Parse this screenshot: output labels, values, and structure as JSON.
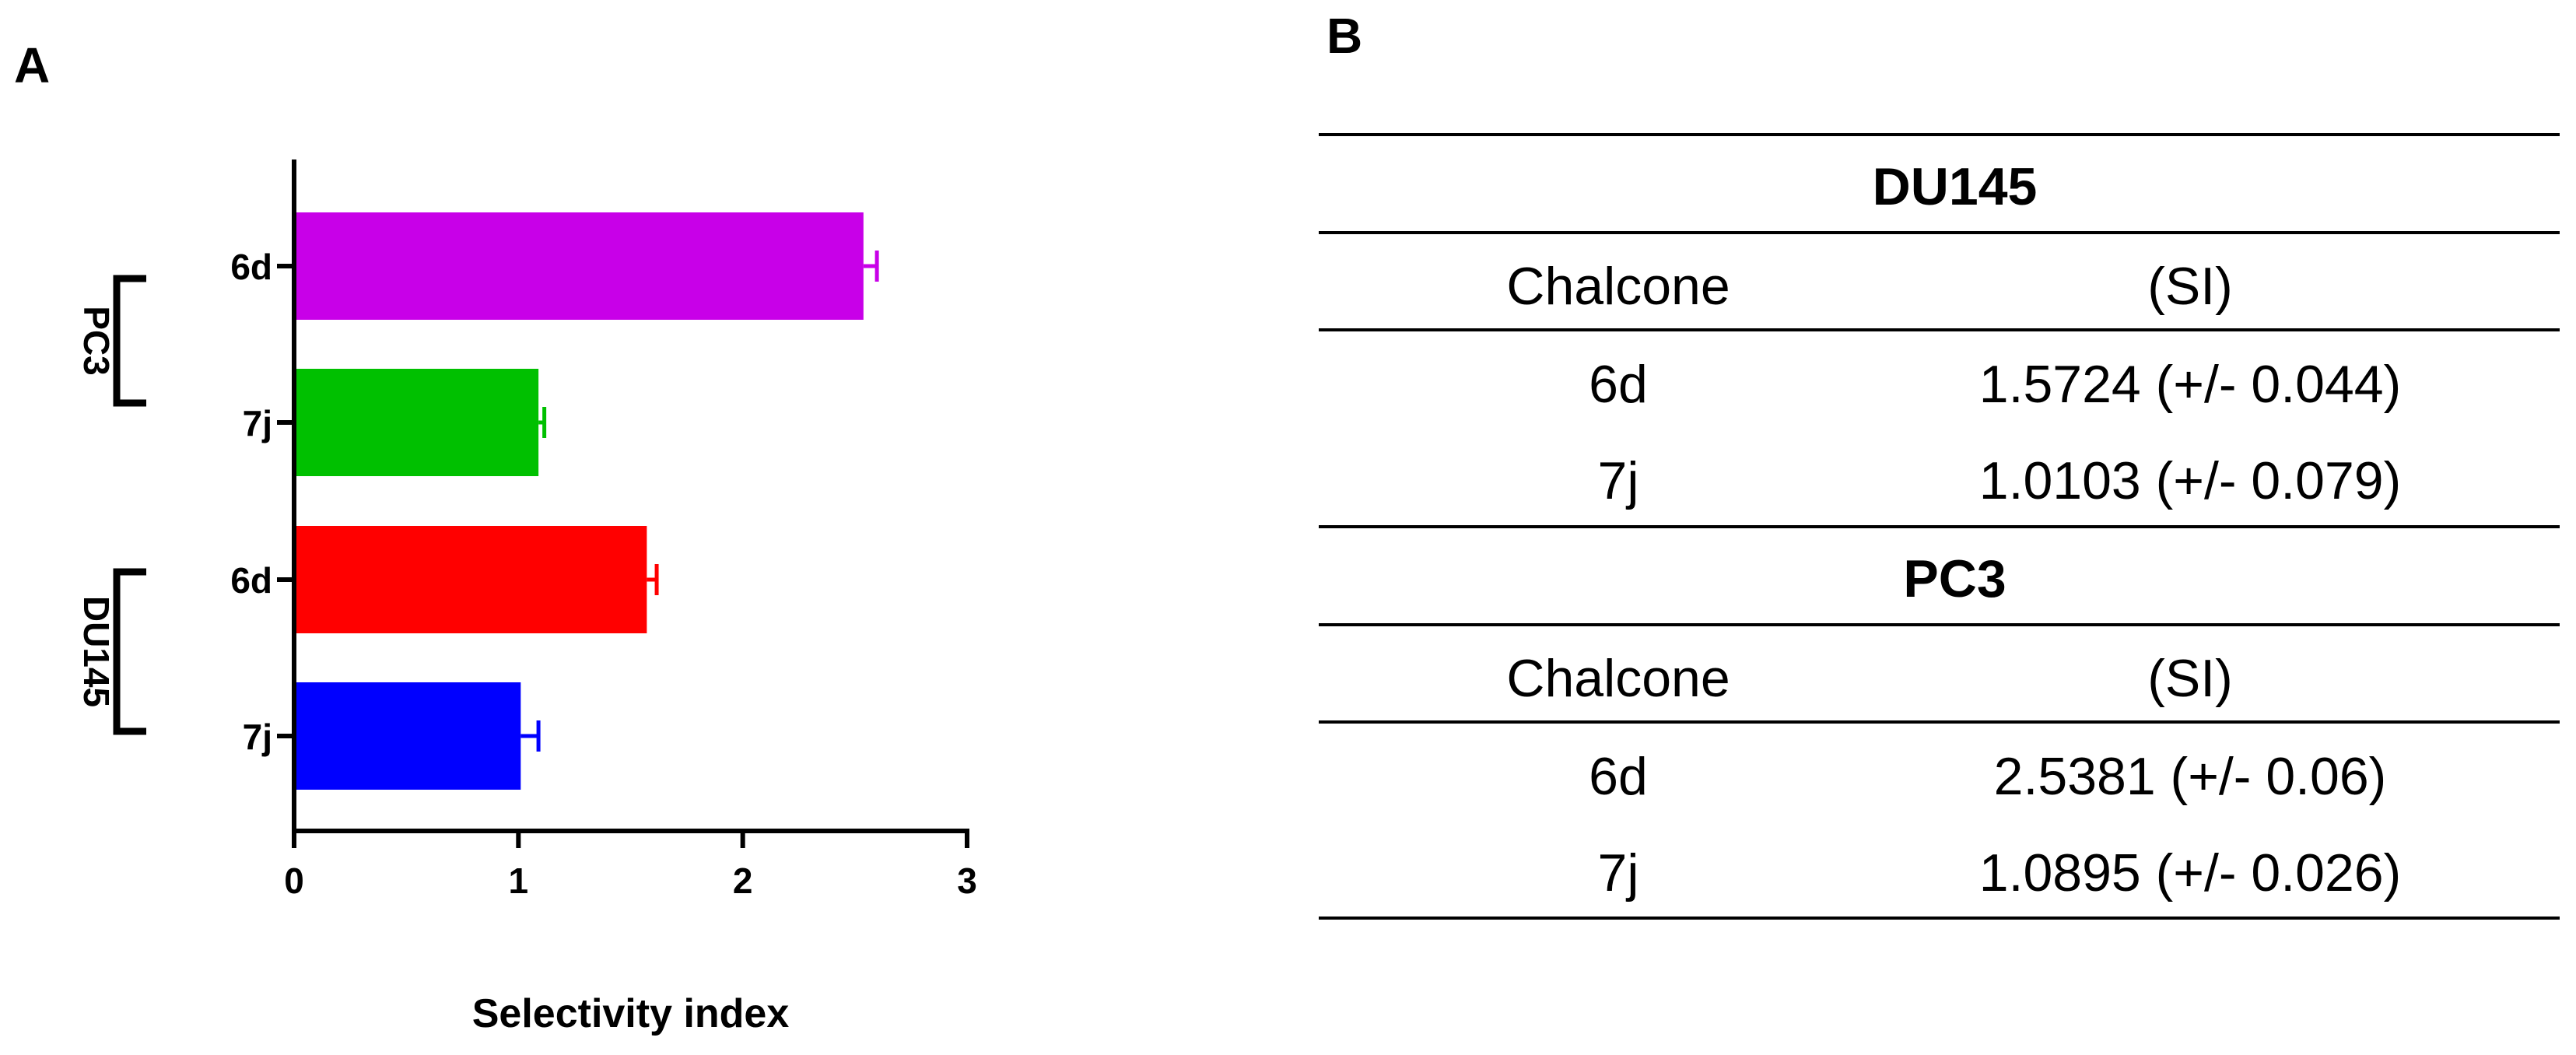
{
  "panel_a": {
    "letter": "A"
  },
  "panel_b": {
    "letter": "B",
    "table": {
      "sections": [
        {
          "title": "DU145",
          "header": [
            "Chalcone",
            "(SI)"
          ],
          "rows": [
            {
              "compound": "6d",
              "si": "1.5724 (+/-  0.044)"
            },
            {
              "compound": "7j",
              "si": "1.0103 (+/-  0.079)"
            }
          ]
        },
        {
          "title": "PC3",
          "header": [
            "Chalcone",
            "(SI)"
          ],
          "rows": [
            {
              "compound": "6d",
              "si": "2.5381 (+/- 0.06)"
            },
            {
              "compound": "7j",
              "si": "1.0895 (+/-  0.026)"
            }
          ]
        }
      ]
    }
  },
  "chart_data": {
    "type": "bar",
    "orientation": "horizontal",
    "title": "",
    "xlabel": "Selectivity index",
    "ylabel": "",
    "xlim": [
      0,
      3
    ],
    "x_ticks": [
      "0",
      "1",
      "2",
      "3"
    ],
    "categories": [
      "6d",
      "7j",
      "6d",
      "7j"
    ],
    "groups": [
      {
        "name": "PC3",
        "members": [
          0,
          1
        ]
      },
      {
        "name": "DU145",
        "members": [
          2,
          3
        ]
      }
    ],
    "values": [
      2.5381,
      1.0895,
      1.5724,
      1.0103
    ],
    "errors": [
      0.06,
      0.026,
      0.044,
      0.079
    ],
    "colors": [
      "#c800e8",
      "#00c000",
      "#ff0000",
      "#0000ff"
    ],
    "grid": false,
    "legend": "none"
  }
}
